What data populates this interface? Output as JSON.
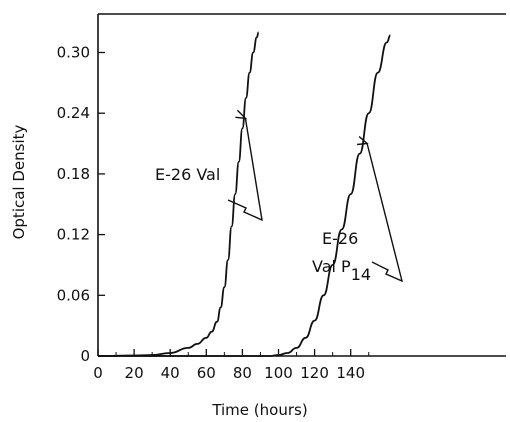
{
  "chart_data": {
    "type": "line",
    "xlabel": "Time (hours)",
    "ylabel": "Optical Density",
    "xlim": [
      0,
      200
    ],
    "ylim": [
      0,
      0.33
    ],
    "x_ticks": [
      "0",
      "20",
      "40",
      "60",
      "80",
      "100",
      "120",
      "140"
    ],
    "y_ticks": [
      "0",
      "0.06",
      "0.12",
      "0.18",
      "0.24",
      "0.30"
    ],
    "grid": false,
    "series": [
      {
        "name": "E-26 Val",
        "x": [
          0,
          20,
          30,
          40,
          50,
          55,
          60,
          63,
          66,
          68,
          70,
          72,
          74,
          76,
          78,
          80,
          82,
          84,
          86,
          88,
          89
        ],
        "y": [
          0,
          0.0005,
          0.001,
          0.003,
          0.008,
          0.012,
          0.018,
          0.024,
          0.034,
          0.048,
          0.068,
          0.095,
          0.128,
          0.16,
          0.192,
          0.225,
          0.255,
          0.28,
          0.3,
          0.315,
          0.32
        ]
      },
      {
        "name": "E-26 Val P14",
        "x": [
          0,
          80,
          95,
          100,
          105,
          110,
          115,
          120,
          125,
          130,
          135,
          140,
          145,
          150,
          155,
          160,
          162
        ],
        "y": [
          0,
          0,
          0,
          0.001,
          0.003,
          0.008,
          0.018,
          0.035,
          0.06,
          0.09,
          0.125,
          0.16,
          0.2,
          0.24,
          0.28,
          0.31,
          0.317
        ]
      }
    ],
    "annotations": [
      {
        "label_lines": [
          "E-26 Val"
        ],
        "series": 0,
        "point_x": 80,
        "point_y": 0.235
      },
      {
        "label_lines": [
          "E-26",
          "Val P",
          "14"
        ],
        "series": 1,
        "point_x": 148,
        "point_y": 0.21
      }
    ]
  }
}
